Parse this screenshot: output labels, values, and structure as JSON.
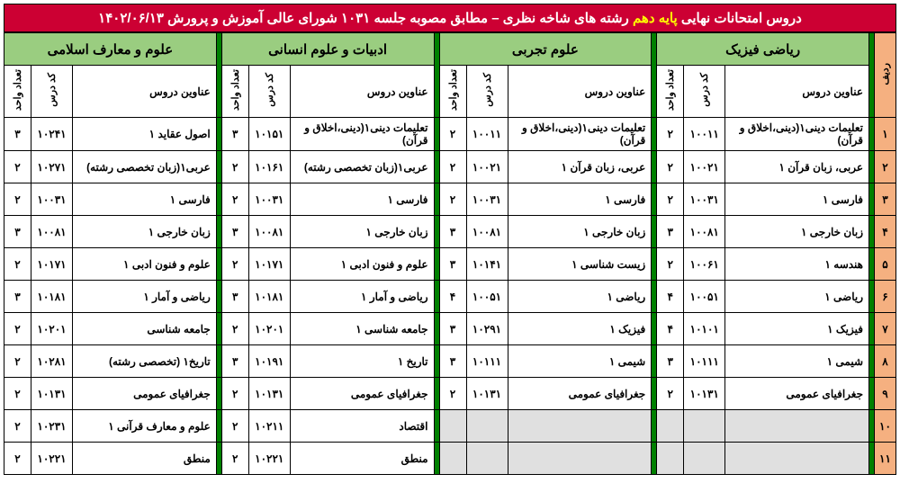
{
  "title_pre": "دروس امتحانات نهایی ",
  "title_hl": "پایه دهم",
  "title_post": " رشته های شاخه نظری – مطابق مصوبه جلسه ۱۰۳۱ شورای عالی آموزش و پرورش  ۱۴۰۲/۰۶/۱۳",
  "rownum_head": "ردیف",
  "subheads": {
    "name": "عناوین دروس",
    "code": "کد درس",
    "credits": "تعداد واحد"
  },
  "groups": [
    {
      "title": "ریاضی فیزیک"
    },
    {
      "title": "علوم تجربی"
    },
    {
      "title": "ادبیات و علوم انسانی"
    },
    {
      "title": "علوم و معارف اسلامی"
    }
  ],
  "rows": [
    {
      "n": "۱",
      "c": [
        {
          "name": "تعلیمات دینی۱(دینی،اخلاق و قرآن)",
          "code": "۱۰۰۱۱",
          "cr": "۲"
        },
        {
          "name": "تعلیمات دینی۱(دینی،اخلاق و قرآن)",
          "code": "۱۰۰۱۱",
          "cr": "۲"
        },
        {
          "name": "تعلیمات دینی۱(دینی،اخلاق و قرآن)",
          "code": "۱۰۱۵۱",
          "cr": "۳"
        },
        {
          "name": "اصول عقاید ۱",
          "code": "۱۰۲۴۱",
          "cr": "۳"
        }
      ]
    },
    {
      "n": "۲",
      "c": [
        {
          "name": "عربی، زبان قرآن ۱",
          "code": "۱۰۰۲۱",
          "cr": "۲"
        },
        {
          "name": "عربی، زبان قرآن ۱",
          "code": "۱۰۰۲۱",
          "cr": "۲"
        },
        {
          "name": "عربی۱(زبان تخصصی رشته)",
          "code": "۱۰۱۶۱",
          "cr": "۲"
        },
        {
          "name": "عربی۱(زبان تخصصی رشته)",
          "code": "۱۰۲۷۱",
          "cr": "۲"
        }
      ]
    },
    {
      "n": "۳",
      "c": [
        {
          "name": "فارسی ۱",
          "code": "۱۰۰۳۱",
          "cr": "۲"
        },
        {
          "name": "فارسی ۱",
          "code": "۱۰۰۳۱",
          "cr": "۲"
        },
        {
          "name": "فارسی ۱",
          "code": "۱۰۰۳۱",
          "cr": "۲"
        },
        {
          "name": "فارسی ۱",
          "code": "۱۰۰۳۱",
          "cr": "۲"
        }
      ]
    },
    {
      "n": "۴",
      "c": [
        {
          "name": "زبان خارجی ۱",
          "code": "۱۰۰۸۱",
          "cr": "۳"
        },
        {
          "name": "زبان خارجی ۱",
          "code": "۱۰۰۸۱",
          "cr": "۳"
        },
        {
          "name": "زبان خارجی ۱",
          "code": "۱۰۰۸۱",
          "cr": "۳"
        },
        {
          "name": "زبان خارجی ۱",
          "code": "۱۰۰۸۱",
          "cr": "۳"
        }
      ]
    },
    {
      "n": "۵",
      "c": [
        {
          "name": "هندسه ۱",
          "code": "۱۰۰۶۱",
          "cr": "۲"
        },
        {
          "name": "زیست شناسی ۱",
          "code": "۱۰۱۴۱",
          "cr": "۳"
        },
        {
          "name": "علوم و فنون ادبی ۱",
          "code": "۱۰۱۷۱",
          "cr": "۲"
        },
        {
          "name": "علوم و فنون ادبی ۱",
          "code": "۱۰۱۷۱",
          "cr": "۲"
        }
      ]
    },
    {
      "n": "۶",
      "c": [
        {
          "name": "ریاضی ۱",
          "code": "۱۰۰۵۱",
          "cr": "۴"
        },
        {
          "name": "ریاضی ۱",
          "code": "۱۰۰۵۱",
          "cr": "۴"
        },
        {
          "name": "ریاضی و آمار ۱",
          "code": "۱۰۱۸۱",
          "cr": "۳"
        },
        {
          "name": "ریاضی و آمار ۱",
          "code": "۱۰۱۸۱",
          "cr": "۳"
        }
      ]
    },
    {
      "n": "۷",
      "c": [
        {
          "name": "فیزیک ۱",
          "code": "۱۰۱۰۱",
          "cr": "۴"
        },
        {
          "name": "فیزیک ۱",
          "code": "۱۰۲۹۱",
          "cr": "۳"
        },
        {
          "name": "جامعه شناسی ۱",
          "code": "۱۰۲۰۱",
          "cr": "۲"
        },
        {
          "name": "جامعه شناسی",
          "code": "۱۰۲۰۱",
          "cr": "۲"
        }
      ]
    },
    {
      "n": "۸",
      "c": [
        {
          "name": "شیمی ۱",
          "code": "۱۰۱۱۱",
          "cr": "۳"
        },
        {
          "name": "شیمی ۱",
          "code": "۱۰۱۱۱",
          "cr": "۳"
        },
        {
          "name": "تاریخ ۱",
          "code": "۱۰۱۹۱",
          "cr": "۳"
        },
        {
          "name": "تاریخ۱ (تخصصی رشته)",
          "code": "۱۰۲۸۱",
          "cr": "۲"
        }
      ]
    },
    {
      "n": "۹",
      "c": [
        {
          "name": "جغرافیای عمومی",
          "code": "۱۰۱۳۱",
          "cr": "۲"
        },
        {
          "name": "جغرافیای عمومی",
          "code": "۱۰۱۳۱",
          "cr": "۲"
        },
        {
          "name": "جغرافیای عمومی",
          "code": "۱۰۱۳۱",
          "cr": "۲"
        },
        {
          "name": "جغرافیای عمومی",
          "code": "۱۰۱۳۱",
          "cr": "۲"
        }
      ]
    },
    {
      "n": "۱۰",
      "c": [
        null,
        null,
        {
          "name": "اقتصاد",
          "code": "۱۰۲۱۱",
          "cr": "۲"
        },
        {
          "name": "علوم و معارف قرآنی ۱",
          "code": "۱۰۲۳۱",
          "cr": "۲"
        }
      ]
    },
    {
      "n": "۱۱",
      "c": [
        null,
        null,
        {
          "name": "منطق",
          "code": "۱۰۲۲۱",
          "cr": "۲"
        },
        {
          "name": "منطق",
          "code": "۱۰۲۲۱",
          "cr": "۲"
        }
      ]
    }
  ]
}
